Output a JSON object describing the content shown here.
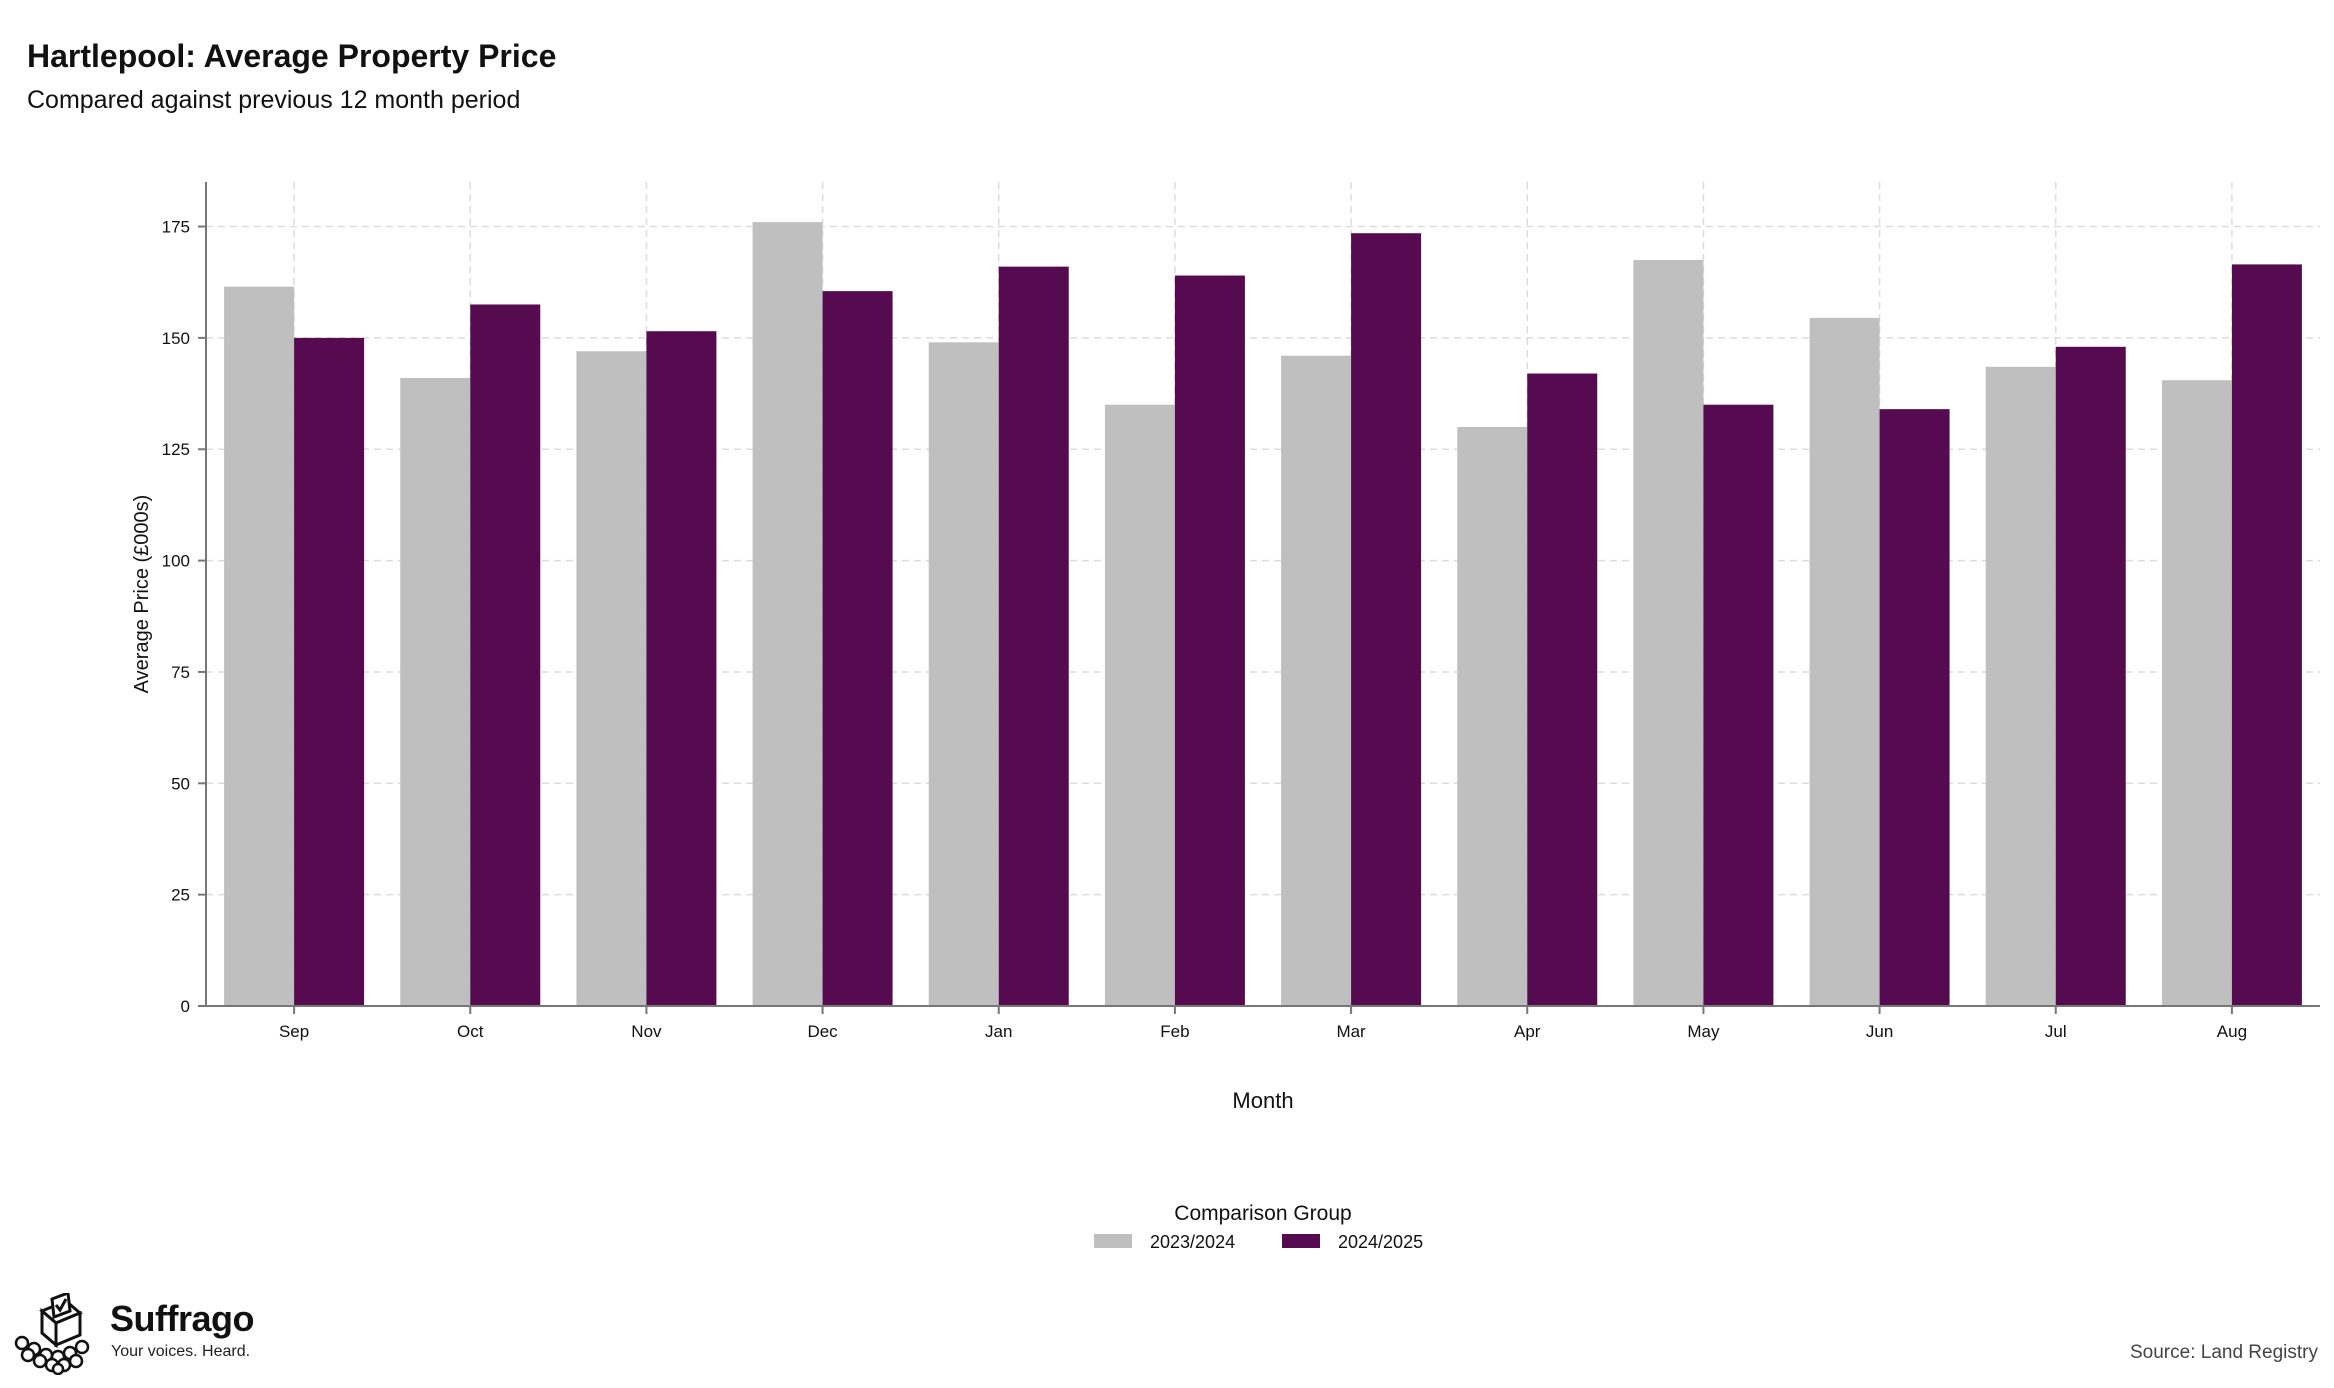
{
  "chart_data": {
    "type": "bar",
    "title": "Hartlepool: Average Property Price",
    "subtitle": "Compared against previous 12 month period",
    "xlabel": "Month",
    "ylabel": "Average Price (£000s)",
    "categories": [
      "Sep",
      "Oct",
      "Nov",
      "Dec",
      "Jan",
      "Feb",
      "Mar",
      "Apr",
      "May",
      "Jun",
      "Jul",
      "Aug"
    ],
    "series": [
      {
        "name": "2023/2024",
        "color": "#bfbfbf",
        "values": [
          161.5,
          141,
          147,
          176,
          149,
          135,
          146,
          130,
          167.5,
          154.5,
          143.5,
          140.5
        ]
      },
      {
        "name": "2024/2025",
        "color": "#560b50",
        "values": [
          150,
          157.5,
          151.5,
          160.5,
          166,
          164,
          173.5,
          142,
          135,
          134,
          148,
          166.5
        ]
      }
    ],
    "ylim": [
      0,
      185
    ],
    "yticks": [
      0,
      25,
      50,
      75,
      100,
      125,
      150,
      175
    ],
    "grid": true,
    "legend": {
      "title": "Comparison Group",
      "position": "bottom-center"
    }
  },
  "branding": {
    "name": "Suffrago",
    "tagline": "Your voices. Heard.",
    "logo_icon": "ballot-box-icon"
  },
  "source": "Source: Land Registry"
}
